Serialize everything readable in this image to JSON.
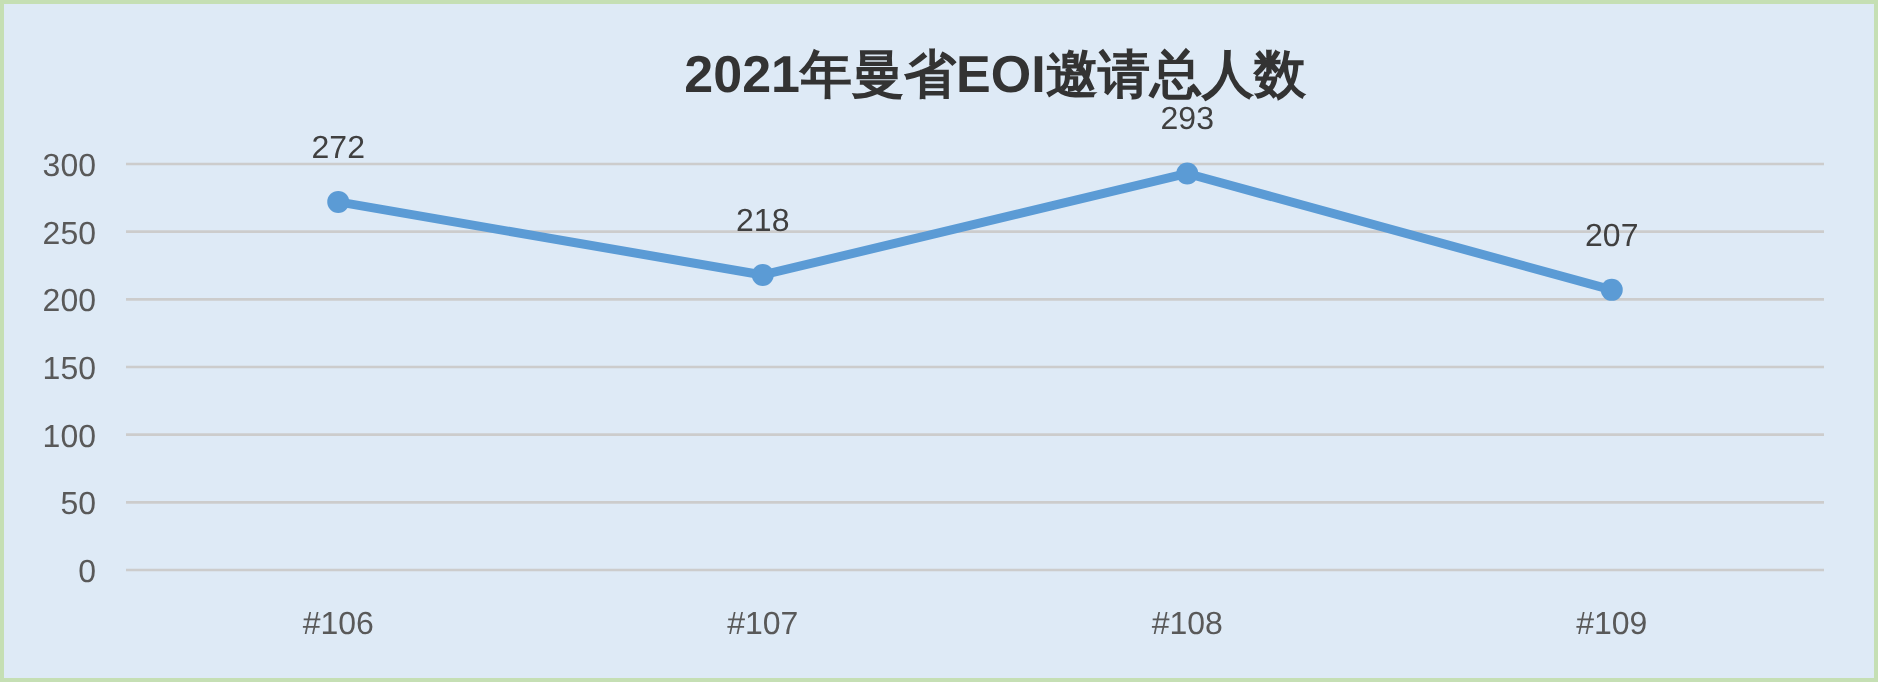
{
  "chart_data": {
    "type": "line",
    "title": "2021年曼省EOI邀请总人数",
    "categories": [
      "#106",
      "#107",
      "#108",
      "#109"
    ],
    "series": [
      {
        "color": "#5b9bd5",
        "values": [
          272,
          218,
          293,
          207
        ]
      }
    ],
    "ylim": [
      0,
      300
    ],
    "yticks": [
      0,
      50,
      100,
      150,
      200,
      250,
      300
    ],
    "grid": "y",
    "data_labels": true,
    "marker": "circle"
  }
}
